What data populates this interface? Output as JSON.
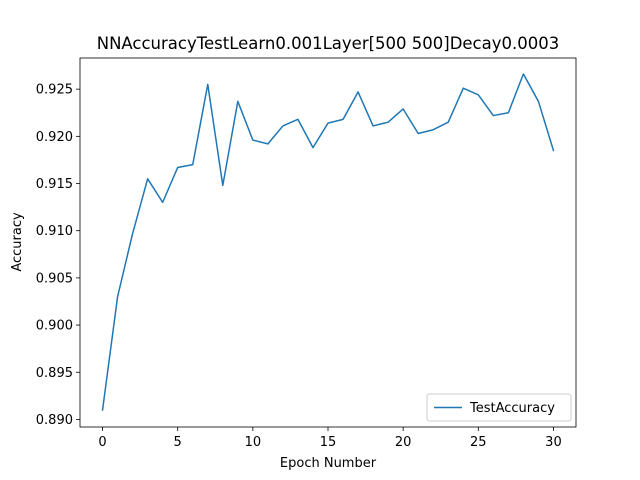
{
  "chart_data": {
    "type": "line",
    "title": "NNAccuracyTestLearn0.001Layer[500 500]Decay0.0003",
    "xlabel": "Epoch Number",
    "ylabel": "Accuracy",
    "xlim": [
      -1.5,
      31.5
    ],
    "ylim": [
      0.8892,
      0.9283
    ],
    "xticks": [
      0,
      5,
      10,
      15,
      20,
      25,
      30
    ],
    "xtick_labels": [
      "0",
      "5",
      "10",
      "15",
      "20",
      "25",
      "30"
    ],
    "yticks": [
      0.89,
      0.895,
      0.9,
      0.905,
      0.91,
      0.915,
      0.92,
      0.925
    ],
    "ytick_labels": [
      "0.890",
      "0.895",
      "0.900",
      "0.905",
      "0.910",
      "0.915",
      "0.920",
      "0.925"
    ],
    "grid": false,
    "legend_position": "lower-right",
    "series": [
      {
        "name": "TestAccuracy",
        "color": "#1f77b4",
        "x": [
          0,
          1,
          2,
          3,
          4,
          5,
          6,
          7,
          8,
          9,
          10,
          11,
          12,
          13,
          14,
          15,
          16,
          17,
          18,
          19,
          20,
          21,
          22,
          23,
          24,
          25,
          26,
          27,
          28,
          29,
          30
        ],
        "y": [
          0.891,
          0.903,
          0.9097,
          0.9155,
          0.913,
          0.9167,
          0.917,
          0.9255,
          0.9148,
          0.9237,
          0.9196,
          0.9192,
          0.9211,
          0.9218,
          0.9188,
          0.9214,
          0.9218,
          0.9247,
          0.9211,
          0.9215,
          0.9229,
          0.9203,
          0.9207,
          0.9215,
          0.9251,
          0.9244,
          0.9222,
          0.9225,
          0.9266,
          0.9237,
          0.9185
        ]
      }
    ]
  }
}
